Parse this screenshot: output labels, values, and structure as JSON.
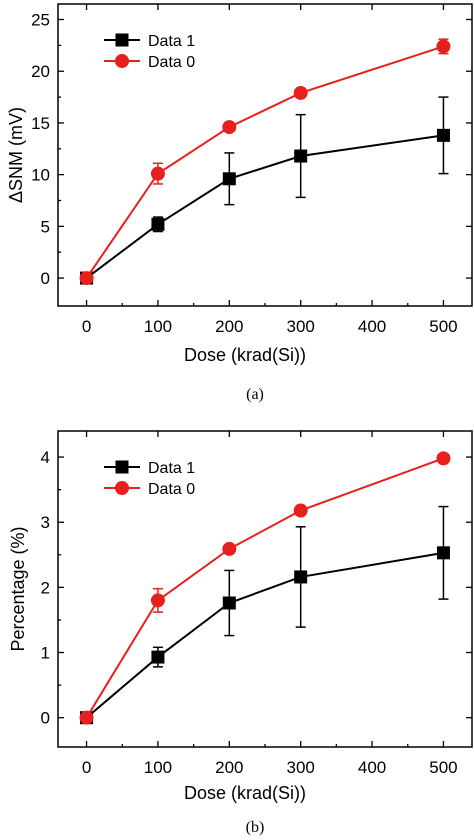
{
  "chart_data": [
    {
      "type": "line",
      "caption": "(a)",
      "xlabel": "Dose  (krad(Si))",
      "ylabel": "ΔSNM  (mV)",
      "xlim": [
        -40,
        540
      ],
      "ylim": [
        -2.7,
        26.5
      ],
      "xticks": [
        0,
        100,
        200,
        300,
        400,
        500
      ],
      "yticks": [
        0,
        5,
        10,
        15,
        20,
        25
      ],
      "grid": false,
      "legend": "top-left",
      "series": [
        {
          "name": "Data 1",
          "color": "#000000",
          "marker": "square",
          "x": [
            0,
            100,
            200,
            300,
            500
          ],
          "y": [
            0,
            5.2,
            9.6,
            11.8,
            13.8
          ],
          "err": [
            0.3,
            0.7,
            2.5,
            4.0,
            3.7
          ]
        },
        {
          "name": "Data 0",
          "color": "#e8201d",
          "marker": "circle",
          "x": [
            0,
            100,
            200,
            300,
            500
          ],
          "y": [
            0,
            10.1,
            14.6,
            17.9,
            22.4
          ],
          "err": [
            0.3,
            1.0,
            0.3,
            0.3,
            0.7
          ]
        }
      ]
    },
    {
      "type": "line",
      "caption": "(b)",
      "xlabel": "Dose  (krad(Si))",
      "ylabel": "Percentage  (%)",
      "xlim": [
        -40,
        540
      ],
      "ylim": [
        -0.45,
        4.4
      ],
      "xticks": [
        0,
        100,
        200,
        300,
        400,
        500
      ],
      "yticks": [
        0,
        1,
        2,
        3,
        4
      ],
      "grid": false,
      "legend": "top-left",
      "series": [
        {
          "name": "Data 1",
          "color": "#000000",
          "marker": "square",
          "x": [
            0,
            100,
            200,
            300,
            500
          ],
          "y": [
            0,
            0.93,
            1.76,
            2.16,
            2.53
          ],
          "err": [
            0.05,
            0.15,
            0.5,
            0.77,
            0.71
          ]
        },
        {
          "name": "Data 0",
          "color": "#e8201d",
          "marker": "circle",
          "x": [
            0,
            100,
            200,
            300,
            500
          ],
          "y": [
            0,
            1.8,
            2.59,
            3.18,
            3.98
          ],
          "err": [
            0.05,
            0.18,
            0.05,
            0.05,
            0.05
          ]
        }
      ]
    }
  ]
}
